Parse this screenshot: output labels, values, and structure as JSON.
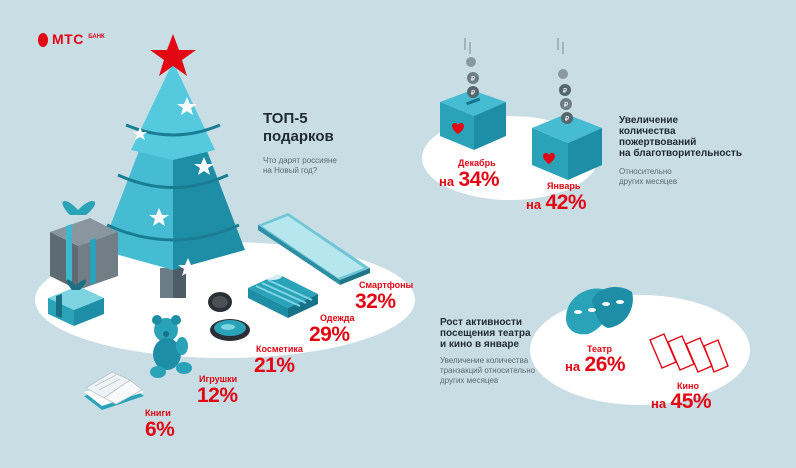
{
  "brand": {
    "name": "МТС",
    "sub": "БАНК",
    "color": "#e30613"
  },
  "colors": {
    "background": "#c8dde4",
    "accent_red": "#e30613",
    "teal": "#2aa3b8",
    "dark_text": "#1f2a33"
  },
  "top5": {
    "title_line1": "ТОП-5",
    "title_line2": "подарков",
    "subtitle_line1": "Что дарят россияне",
    "subtitle_line2": "на Новый год?",
    "items": [
      {
        "label": "Смартфоны",
        "value": "32%"
      },
      {
        "label": "Одежда",
        "value": "29%"
      },
      {
        "label": "Косметика",
        "value": "21%"
      },
      {
        "label": "Игрушки",
        "value": "12%"
      },
      {
        "label": "Книги",
        "value": "6%"
      }
    ]
  },
  "charity": {
    "title_line1": "Увеличение",
    "title_line2": "количества",
    "title_line3": "пожертвований",
    "title_line4": "на благотворительность",
    "subtitle_line1": "Относительно",
    "subtitle_line2": "других месяцев",
    "items": [
      {
        "label": "Декабрь",
        "prefix": "на",
        "value": "34%"
      },
      {
        "label": "Январь",
        "prefix": "на",
        "value": "42%"
      }
    ]
  },
  "culture": {
    "title_line1": "Рост активности",
    "title_line2": "посещения театра",
    "title_line3": "и кино в январе",
    "subtitle_line1": "Увеличение количества",
    "subtitle_line2": "транзакций относительно",
    "subtitle_line3": "других месяцев",
    "items": [
      {
        "label": "Театр",
        "prefix": "на",
        "value": "26%"
      },
      {
        "label": "Кино",
        "prefix": "на",
        "value": "45%"
      }
    ]
  },
  "icons": [
    "egg-logo-icon",
    "christmas-tree-icon",
    "star-icon",
    "gift-box-icon",
    "smartphone-icon",
    "clothing-icon",
    "powder-compact-icon",
    "teddy-bear-icon",
    "book-icon",
    "donation-box-icon",
    "coin-icon",
    "theatre-mask-icon",
    "cinema-ticket-icon"
  ]
}
